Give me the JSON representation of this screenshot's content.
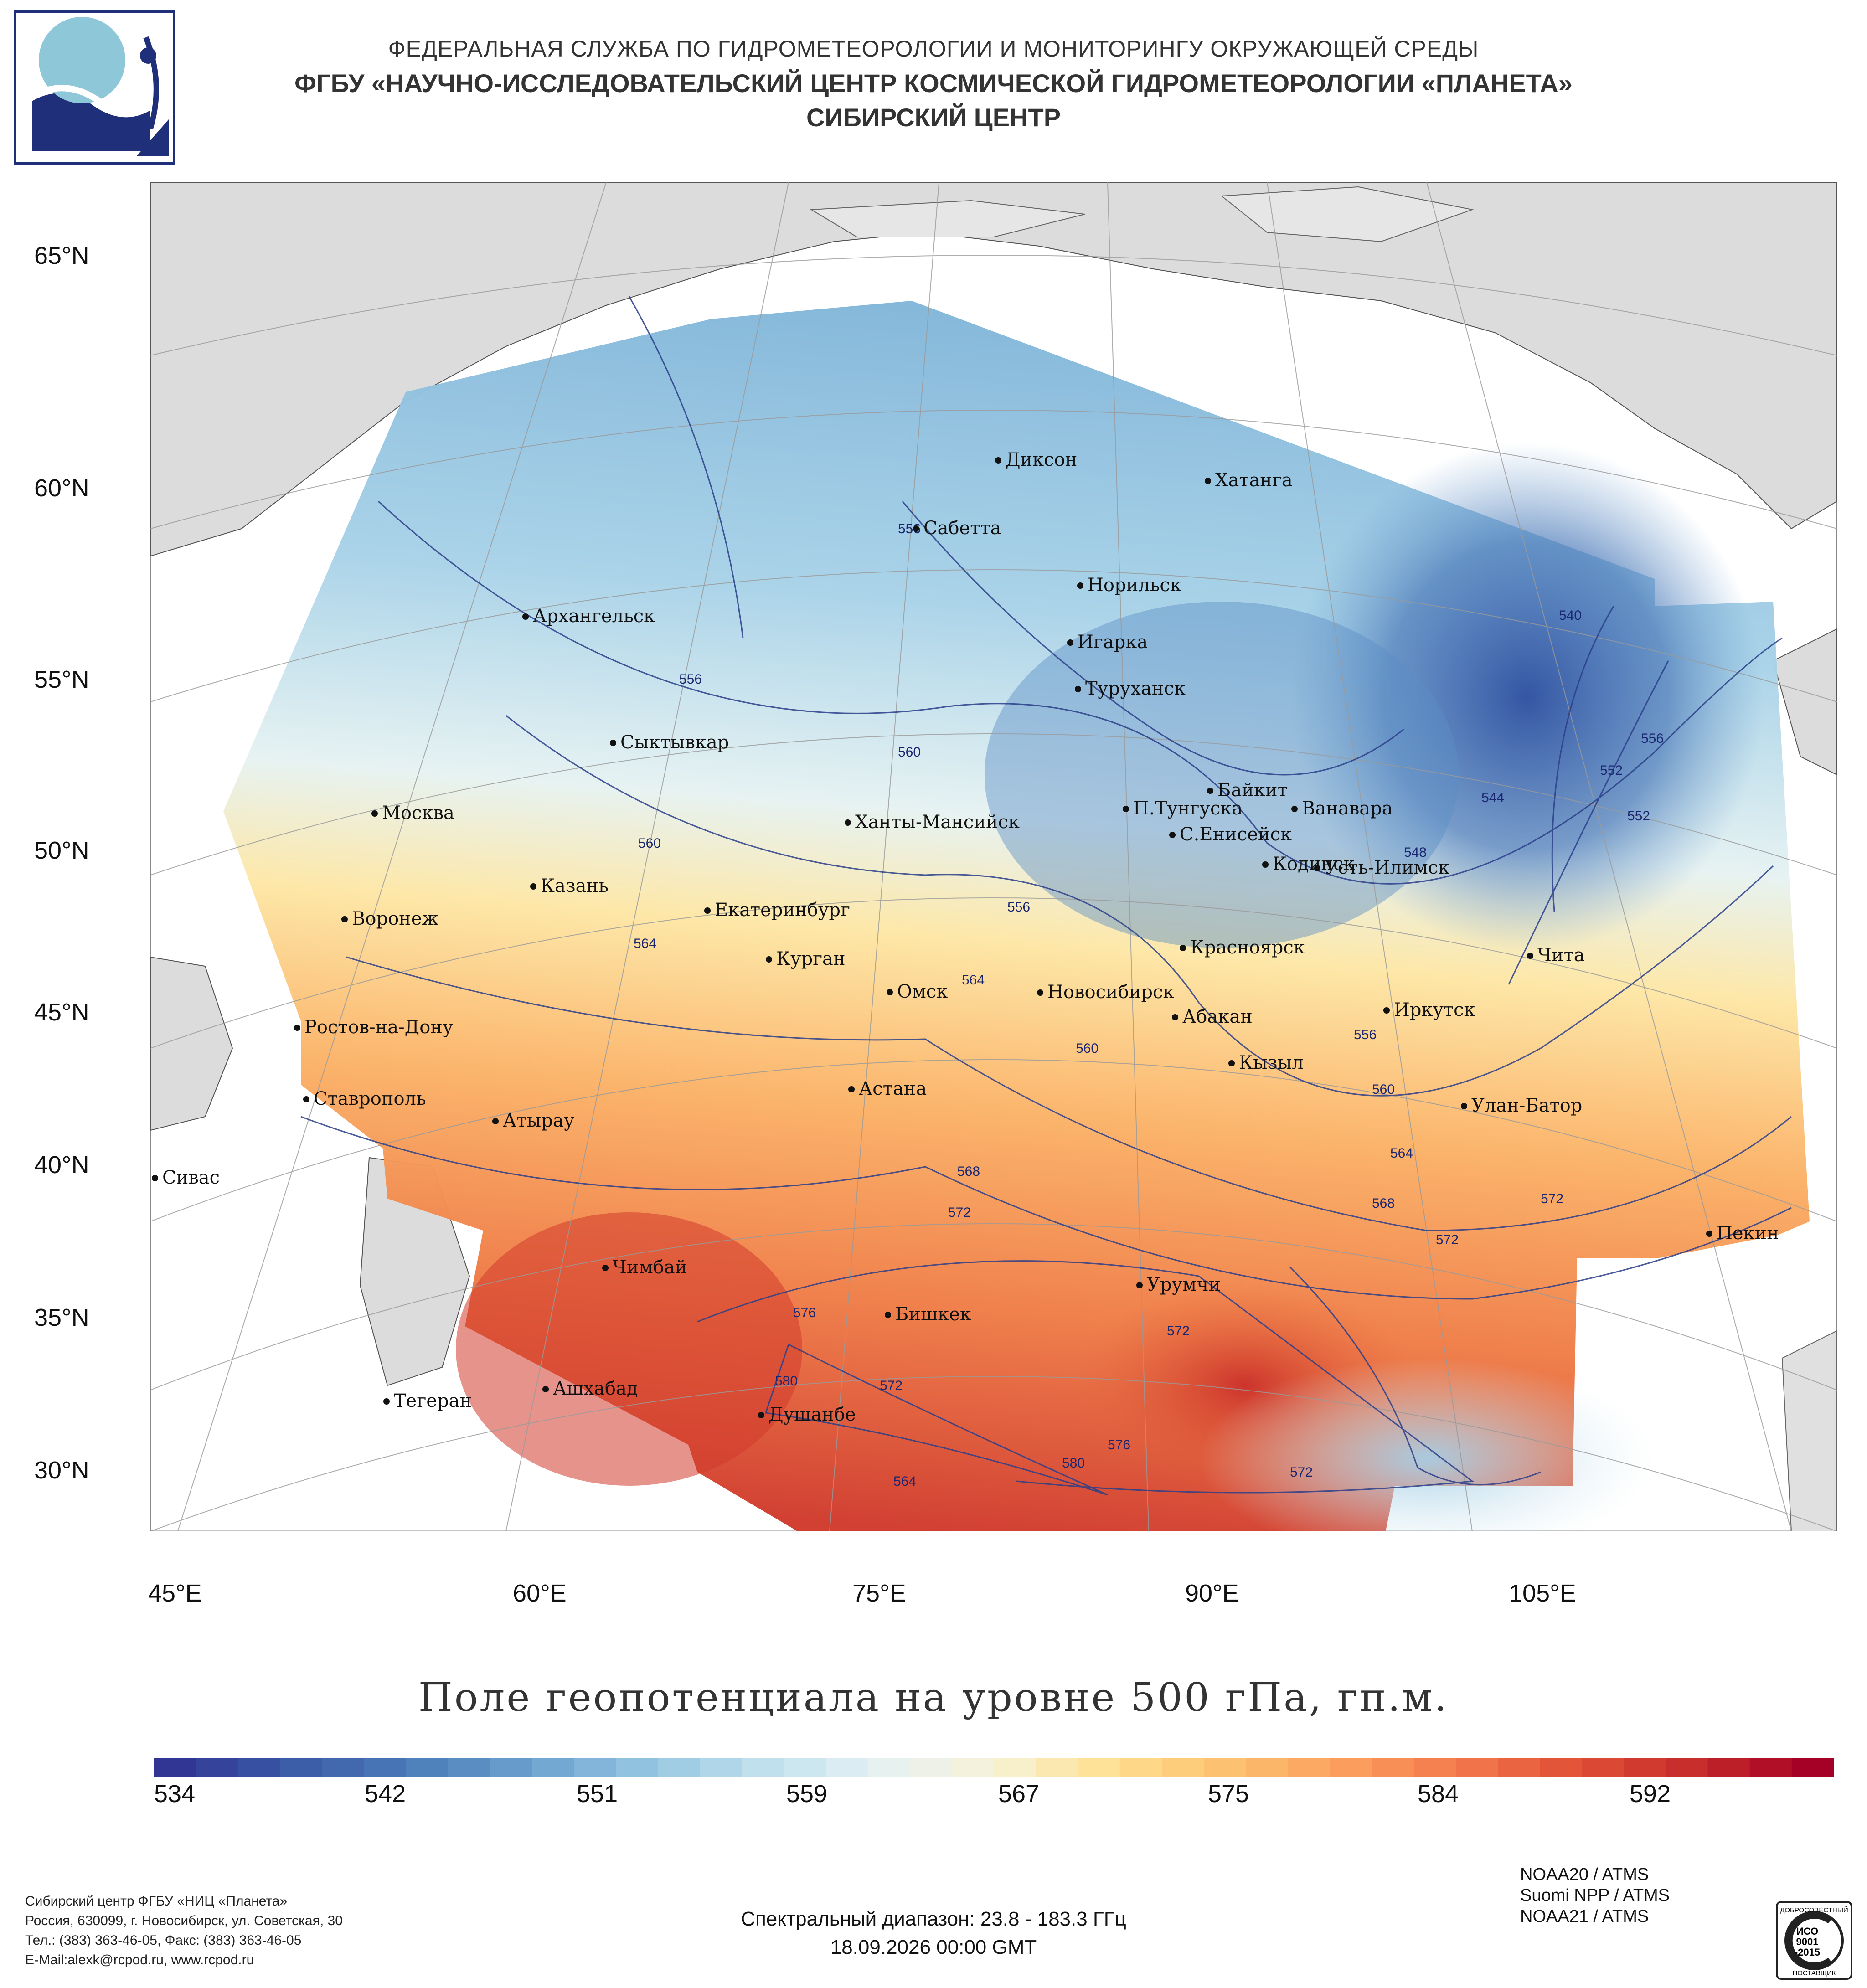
{
  "header": {
    "line1": "ФЕДЕРАЛЬНАЯ СЛУЖБА ПО ГИДРОМЕТЕОРОЛОГИИ И МОНИТОРИНГУ ОКРУЖАЮЩЕЙ СРЕДЫ",
    "line2": "ФГБУ «НАУЧНО-ИССЛЕДОВАТЕЛЬСКИЙ ЦЕНТР КОСМИЧЕСКОЙ ГИДРОМЕТЕОРОЛОГИИ «ПЛАНЕТА»",
    "line3": "СИБИРСКИЙ ЦЕНТР"
  },
  "map": {
    "lat_labels": [
      "65°N",
      "60°N",
      "55°N",
      "50°N",
      "45°N",
      "40°N",
      "35°N",
      "30°N"
    ],
    "lon_labels": [
      "45°E",
      "60°E",
      "75°E",
      "90°E",
      "105°E"
    ],
    "cities": [
      {
        "name": "Диксон"
      },
      {
        "name": "Хатанга"
      },
      {
        "name": "Сабетта"
      },
      {
        "name": "Норильск"
      },
      {
        "name": "Архангельск"
      },
      {
        "name": "Игарка"
      },
      {
        "name": "Туруханск"
      },
      {
        "name": "Сыктывкар"
      },
      {
        "name": "Байкит"
      },
      {
        "name": "П.Тунгуска"
      },
      {
        "name": "Ванавара"
      },
      {
        "name": "Москва"
      },
      {
        "name": "Ханты-Мансийск"
      },
      {
        "name": "С.Енисейск"
      },
      {
        "name": "Кодинск"
      },
      {
        "name": "Усть-Илимск"
      },
      {
        "name": "Казань"
      },
      {
        "name": "Екатеринбург"
      },
      {
        "name": "Воронеж"
      },
      {
        "name": "Красноярск"
      },
      {
        "name": "Курган"
      },
      {
        "name": "Чита"
      },
      {
        "name": "Омск"
      },
      {
        "name": "Новосибирск"
      },
      {
        "name": "Иркутск"
      },
      {
        "name": "Ростов-на-Дону"
      },
      {
        "name": "Абакан"
      },
      {
        "name": "Кызыл"
      },
      {
        "name": "Астана"
      },
      {
        "name": "Ставрополь"
      },
      {
        "name": "Улан-Батор"
      },
      {
        "name": "Атырау"
      },
      {
        "name": "Сивас"
      },
      {
        "name": "Пекин"
      },
      {
        "name": "Чимбай"
      },
      {
        "name": "Урумчи"
      },
      {
        "name": "Бишкек"
      },
      {
        "name": "Ашхабад"
      },
      {
        "name": "Тегеран"
      },
      {
        "name": "Душанбе"
      }
    ],
    "isolines": [
      "540",
      "544",
      "548",
      "552",
      "552",
      "556",
      "556",
      "556",
      "556",
      "556",
      "560",
      "560",
      "560",
      "560",
      "564",
      "564",
      "564",
      "568",
      "568",
      "572",
      "572",
      "572",
      "572",
      "572",
      "576",
      "576",
      "580",
      "580",
      "564",
      "572"
    ]
  },
  "map_title": "Поле геопотенциала на уровне 500 гПа, гп.м.",
  "colorbar": {
    "labels": [
      "534",
      "542",
      "551",
      "559",
      "567",
      "575",
      "584",
      "592"
    ],
    "colors": [
      "#313695",
      "#3b5aa6",
      "#4a7bb7",
      "#6aa0cf",
      "#93c4e0",
      "#bfe0ee",
      "#e4f1f3",
      "#f7f2d8",
      "#fee090",
      "#fdc170",
      "#fb9f5d",
      "#f3784c",
      "#e04f36",
      "#c62b2a",
      "#a50026"
    ]
  },
  "footer": {
    "org_lines": [
      "Сибирский центр ФГБУ «НИЦ «Планета»",
      "Россия, 630099, г. Новосибирск, ул. Советская, 30",
      "Тел.: (383) 363-46-05, Факс: (383) 363-46-05",
      "E-Mail:alexk@rcpod.ru, www.rcpod.ru"
    ],
    "spectral": "Спектральный диапазон: 23.8 - 183.3 ГГц",
    "datetime": "18.09.2026 00:00 GMT",
    "instruments": [
      "NOAA20 / ATMS",
      "Suomi NPP / ATMS",
      "NOAA21 / ATMS"
    ],
    "iso_badge": {
      "top": "ДОБРОСОВЕСТНЫЙ",
      "mid1": "ИСО",
      "mid2": "9001",
      "mid3": "-2015",
      "bottom": "ПОСТАВЩИК"
    }
  }
}
